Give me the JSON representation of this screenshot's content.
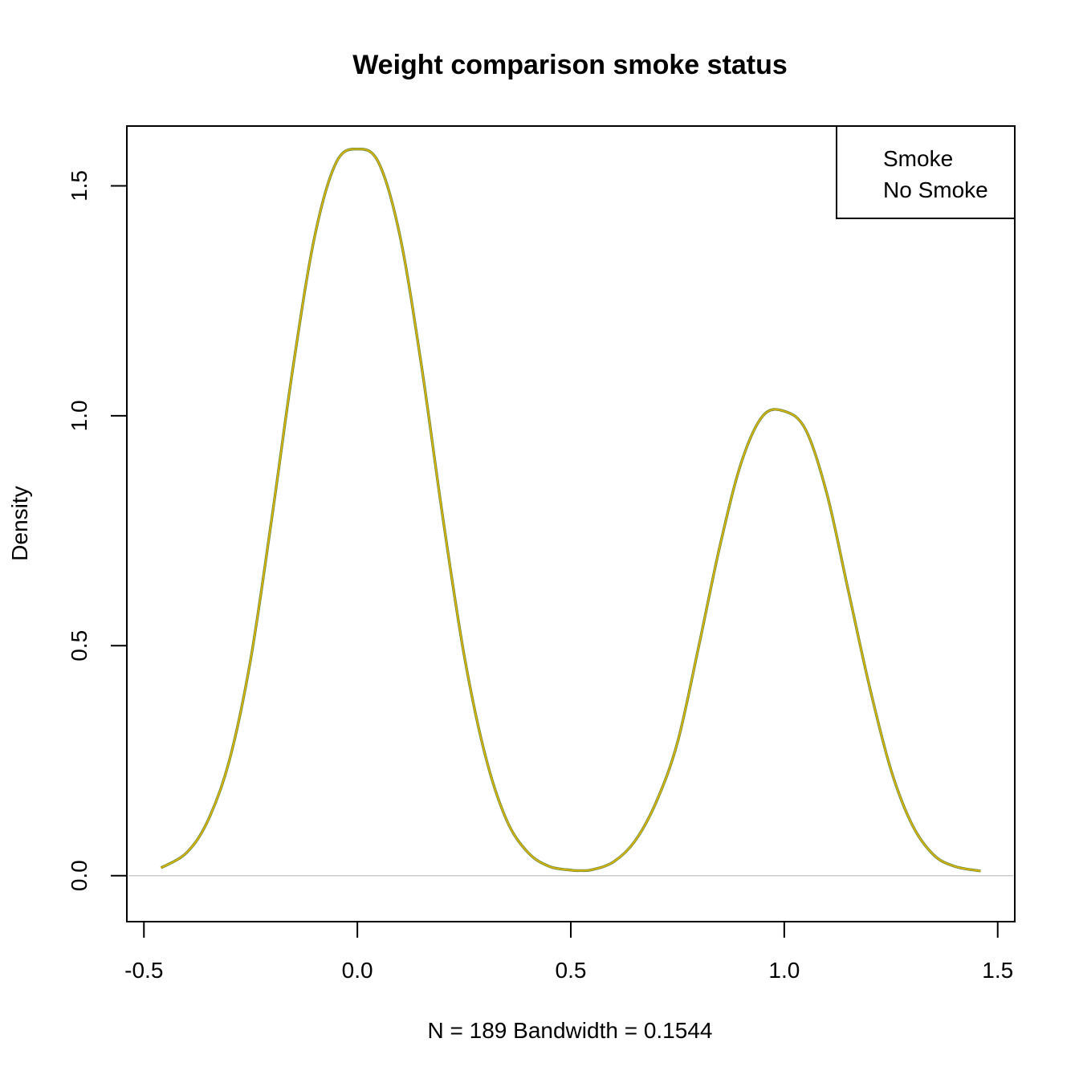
{
  "chart_data": {
    "type": "line",
    "title": "Weight comparison smoke status",
    "xlabel": "N = 189   Bandwidth = 0.1544",
    "ylabel": "Density",
    "xlim": [
      -0.54,
      1.54
    ],
    "ylim": [
      -0.1,
      1.63
    ],
    "x_ticks": [
      -0.5,
      0.0,
      0.5,
      1.0,
      1.5
    ],
    "x_tick_labels": [
      "-0.5",
      "0.0",
      "0.5",
      "1.0",
      "1.5"
    ],
    "y_ticks": [
      0.0,
      0.5,
      1.0,
      1.5
    ],
    "y_tick_labels": [
      "0.0",
      "0.5",
      "1.0",
      "1.5"
    ],
    "grid": false,
    "legend": {
      "position": "top-right",
      "entries": [
        "Smoke",
        "No Smoke"
      ]
    },
    "line_color": "#E6B800",
    "outline_color": "#6E8B3D",
    "baseline_color": "#cccccc",
    "series": [
      {
        "name": "Smoke",
        "x": [
          -0.46,
          -0.4,
          -0.35,
          -0.3,
          -0.25,
          -0.2,
          -0.15,
          -0.1,
          -0.05,
          0.0,
          0.05,
          0.1,
          0.15,
          0.2,
          0.25,
          0.3,
          0.35,
          0.4,
          0.45,
          0.5,
          0.52,
          0.55,
          0.6,
          0.65,
          0.7,
          0.75,
          0.8,
          0.85,
          0.9,
          0.95,
          1.0,
          1.05,
          1.1,
          1.15,
          1.2,
          1.25,
          1.3,
          1.35,
          1.4,
          1.46
        ],
        "y": [
          0.017,
          0.05,
          0.12,
          0.25,
          0.47,
          0.78,
          1.11,
          1.39,
          1.55,
          1.58,
          1.55,
          1.39,
          1.11,
          0.78,
          0.48,
          0.26,
          0.12,
          0.05,
          0.02,
          0.012,
          0.011,
          0.013,
          0.03,
          0.075,
          0.16,
          0.29,
          0.5,
          0.72,
          0.9,
          1.0,
          1.01,
          0.97,
          0.83,
          0.62,
          0.41,
          0.23,
          0.11,
          0.045,
          0.02,
          0.01
        ]
      },
      {
        "name": "No Smoke",
        "x": [
          -0.46,
          -0.4,
          -0.35,
          -0.3,
          -0.25,
          -0.2,
          -0.15,
          -0.1,
          -0.05,
          0.0,
          0.05,
          0.1,
          0.15,
          0.2,
          0.25,
          0.3,
          0.35,
          0.4,
          0.45,
          0.5,
          0.52,
          0.55,
          0.6,
          0.65,
          0.7,
          0.75,
          0.8,
          0.85,
          0.9,
          0.95,
          1.0,
          1.05,
          1.1,
          1.15,
          1.2,
          1.25,
          1.3,
          1.35,
          1.4,
          1.46
        ],
        "y": [
          0.017,
          0.05,
          0.12,
          0.25,
          0.47,
          0.78,
          1.11,
          1.39,
          1.55,
          1.58,
          1.55,
          1.39,
          1.11,
          0.78,
          0.48,
          0.26,
          0.12,
          0.05,
          0.02,
          0.012,
          0.011,
          0.013,
          0.03,
          0.075,
          0.16,
          0.29,
          0.5,
          0.72,
          0.9,
          1.0,
          1.01,
          0.97,
          0.83,
          0.62,
          0.41,
          0.23,
          0.11,
          0.045,
          0.02,
          0.01
        ]
      }
    ]
  }
}
